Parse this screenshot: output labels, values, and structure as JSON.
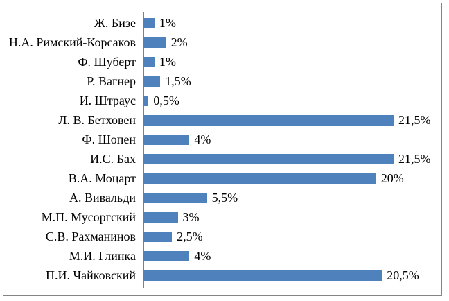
{
  "chart_data": {
    "type": "bar",
    "orientation": "horizontal",
    "title": "",
    "xlabel": "",
    "ylabel": "",
    "grid": false,
    "legend": false,
    "xlim": [
      0,
      25
    ],
    "categories": [
      "Ж. Бизе",
      "Н.А. Римский-Корсаков",
      "Ф. Шуберт",
      "Р. Вагнер",
      "И. Штраус",
      "Л. В. Бетховен",
      "Ф. Шопен",
      "И.С. Бах",
      "В.А. Моцарт",
      "А. Вивальди",
      "М.П. Мусоргский",
      "С.В. Рахманинов",
      "М.И. Глинка",
      "П.И. Чайковский"
    ],
    "values": [
      1,
      2,
      1,
      1.5,
      0.5,
      21.5,
      4,
      21.5,
      20,
      5.5,
      3,
      2.5,
      4,
      20.5
    ],
    "value_labels": [
      "1%",
      "2%",
      "1%",
      "1,5%",
      "0,5%",
      "21,5%",
      "4%",
      "21,5%",
      "20%",
      "5,5%",
      "3%",
      "2,5%",
      "4%",
      "20,5%"
    ],
    "colors": {
      "bar": "#4f81bd",
      "axis_line": "#808080",
      "frame_border": "#848484",
      "text": "#000000",
      "background": "#ffffff"
    }
  }
}
